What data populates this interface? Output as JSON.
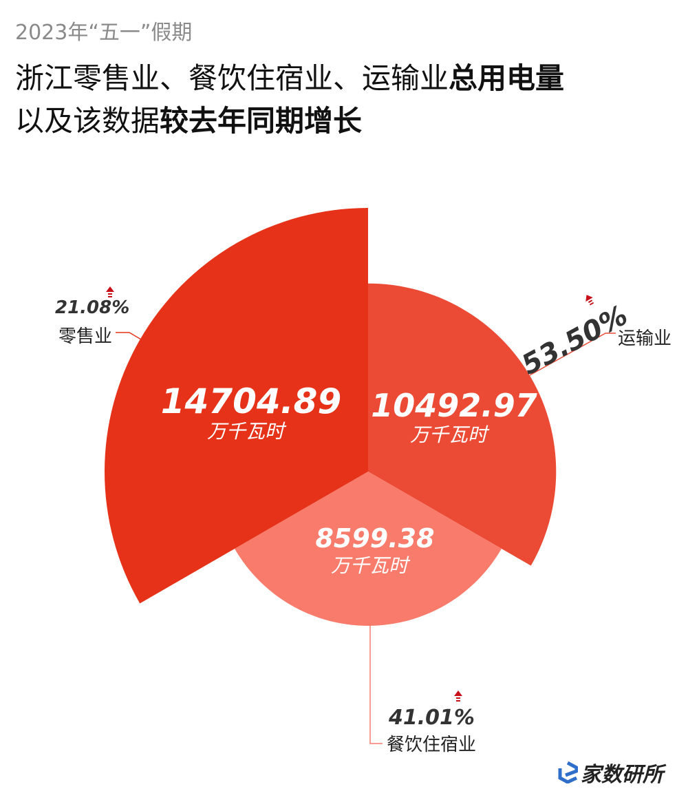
{
  "header": {
    "subtitle": "2023年“五一”假期",
    "title_line1_normal": "浙江零售业、餐饮住宿业、运输业",
    "title_line1_bold": "总用电量",
    "title_line2_normal": "以及该数据",
    "title_line2_bold": "较去年同期增长"
  },
  "chart_data": {
    "type": "rose",
    "unit": "万千瓦时",
    "categories": [
      "运输业",
      "餐饮住宿业",
      "零售业"
    ],
    "values": [
      10492.97,
      8599.38,
      14704.89
    ],
    "value_labels": [
      "10492.97",
      "8599.38",
      "14704.89"
    ],
    "growth": [
      "53.50%",
      "41.01%",
      "21.08%"
    ],
    "colors": [
      "#eb4b35",
      "#f87b6b",
      "#e53218"
    ]
  },
  "logo": {
    "text": "家数研所",
    "color": "#2f6fc9"
  }
}
